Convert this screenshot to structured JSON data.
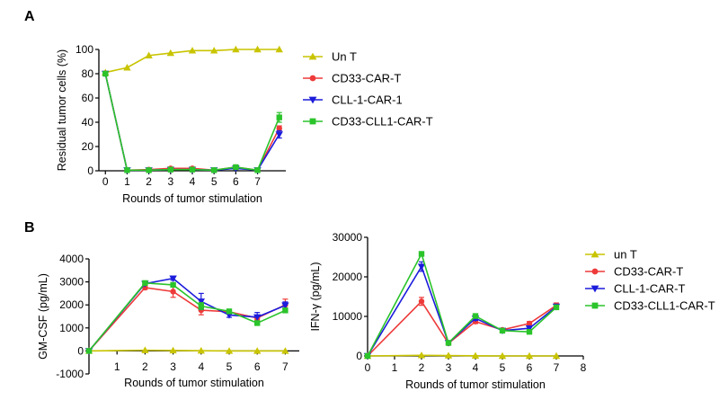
{
  "chart_data": [
    {
      "panel": "A",
      "type": "line",
      "title": "",
      "xlabel": "Rounds of tumor stimulation",
      "ylabel": "Residual tumor cells (%)",
      "xlim": [
        -0.3,
        8.3
      ],
      "ylim": [
        0,
        100
      ],
      "xticks": [
        0,
        1,
        2,
        3,
        4,
        5,
        6,
        7
      ],
      "yticks": [
        0,
        20,
        40,
        60,
        80,
        100
      ],
      "legend_position": "right",
      "series": [
        {
          "name": "Un T",
          "color": "#c8c400",
          "marker": "triangle",
          "x": [
            0,
            1,
            2,
            3,
            4,
            5,
            6,
            7,
            8
          ],
          "values": [
            81,
            85,
            95,
            97,
            99,
            99,
            100,
            100,
            100
          ],
          "errors": [
            1,
            0,
            0,
            0,
            0,
            0,
            0,
            0,
            0
          ]
        },
        {
          "name": "CD33-CAR-T",
          "color": "#ee3a3a",
          "marker": "circle",
          "x": [
            0,
            1,
            2,
            3,
            4,
            5,
            6,
            7,
            8
          ],
          "values": [
            80,
            0.5,
            1,
            2,
            2,
            0.5,
            3,
            0.5,
            35
          ],
          "errors": [
            0,
            0,
            0,
            1,
            1,
            0,
            1,
            0,
            2
          ]
        },
        {
          "name": "CLL-1-CAR-1",
          "color": "#1c1cdc",
          "marker": "triangle-down",
          "x": [
            0,
            1,
            2,
            3,
            4,
            5,
            6,
            7,
            8
          ],
          "values": [
            80,
            0.5,
            0.5,
            1,
            1,
            0.5,
            2,
            0.5,
            30
          ],
          "errors": [
            0,
            0,
            0,
            0,
            0,
            0,
            1,
            0,
            3
          ]
        },
        {
          "name": "CD33-CLL1-CAR-T",
          "color": "#2bc42b",
          "marker": "square",
          "x": [
            0,
            1,
            2,
            3,
            4,
            5,
            6,
            7,
            8
          ],
          "values": [
            80,
            0.5,
            0.5,
            1,
            1,
            0.5,
            3,
            0.5,
            44
          ],
          "errors": [
            0,
            0,
            0,
            0,
            0,
            0,
            1,
            0,
            4
          ]
        }
      ]
    },
    {
      "panel": "B",
      "type": "line",
      "title": "",
      "xlabel": "Rounds of tumor stimulation",
      "ylabel": "GM-CSF (pg/mL)",
      "xlim": [
        0,
        7.5
      ],
      "ylim": [
        -1000,
        4000
      ],
      "xticks": [
        1,
        2,
        3,
        4,
        5,
        6,
        7
      ],
      "yticks": [
        -1000,
        0,
        1000,
        2000,
        3000,
        4000
      ],
      "series": [
        {
          "name": "un T",
          "color": "#c8c400",
          "marker": "triangle",
          "x": [
            0,
            2,
            3,
            4,
            5,
            6,
            7
          ],
          "values": [
            0,
            30,
            20,
            10,
            0,
            0,
            0
          ],
          "errors": [
            0,
            0,
            0,
            0,
            0,
            0,
            0
          ]
        },
        {
          "name": "CD33-CAR-T",
          "color": "#ee3a3a",
          "marker": "circle",
          "x": [
            0,
            2,
            3,
            4,
            5,
            6,
            7
          ],
          "values": [
            0,
            2750,
            2580,
            1770,
            1700,
            1430,
            2000
          ],
          "errors": [
            0,
            80,
            250,
            200,
            100,
            80,
            250
          ]
        },
        {
          "name": "CLL-1-CAR-T",
          "color": "#1c1cdc",
          "marker": "triangle-down",
          "x": [
            0,
            2,
            3,
            4,
            5,
            6,
            7
          ],
          "values": [
            0,
            2920,
            3150,
            2150,
            1560,
            1470,
            1980
          ],
          "errors": [
            0,
            60,
            80,
            350,
            100,
            200,
            150
          ]
        },
        {
          "name": "CD33-CLL1-CAR-T",
          "color": "#2bc42b",
          "marker": "square",
          "x": [
            0,
            2,
            3,
            4,
            5,
            6,
            7
          ],
          "values": [
            0,
            2950,
            2870,
            1950,
            1720,
            1210,
            1760
          ],
          "errors": [
            0,
            60,
            80,
            150,
            80,
            60,
            100
          ]
        }
      ]
    },
    {
      "panel": "B",
      "type": "line",
      "title": "",
      "xlabel": "Rounds of tumor stimulation",
      "ylabel": "IFN-γ (pg/mL)",
      "xlim": [
        0,
        8
      ],
      "ylim": [
        0,
        30000
      ],
      "xticks": [
        0,
        1,
        2,
        3,
        4,
        5,
        6,
        7,
        8
      ],
      "yticks": [
        0,
        10000,
        20000,
        30000
      ],
      "legend_position": "right",
      "series": [
        {
          "name": "un T",
          "color": "#c8c400",
          "marker": "triangle",
          "x": [
            0,
            2,
            3,
            4,
            5,
            6,
            7
          ],
          "values": [
            0,
            150,
            100,
            50,
            0,
            0,
            0
          ],
          "errors": [
            0,
            0,
            0,
            0,
            0,
            0,
            0
          ]
        },
        {
          "name": "CD33-CAR-T",
          "color": "#ee3a3a",
          "marker": "circle",
          "x": [
            0,
            2,
            3,
            4,
            5,
            6,
            7
          ],
          "values": [
            0,
            13800,
            3200,
            8700,
            6600,
            8200,
            12800
          ],
          "errors": [
            0,
            1000,
            300,
            500,
            300,
            500,
            600
          ]
        },
        {
          "name": "CLL-1-CAR-T",
          "color": "#1c1cdc",
          "marker": "triangle-down",
          "x": [
            0,
            2,
            3,
            4,
            5,
            6,
            7
          ],
          "values": [
            0,
            22600,
            3300,
            9500,
            6400,
            7000,
            12500
          ],
          "errors": [
            0,
            1200,
            300,
            500,
            300,
            500,
            500
          ]
        },
        {
          "name": "CD33-CLL1-CAR-T",
          "color": "#2bc42b",
          "marker": "square",
          "x": [
            0,
            2,
            3,
            4,
            5,
            6,
            7
          ],
          "values": [
            0,
            25800,
            3300,
            10100,
            6400,
            6100,
            12300
          ],
          "errors": [
            0,
            500,
            300,
            500,
            300,
            300,
            500
          ]
        }
      ]
    }
  ],
  "panel_labels": {
    "a": "A",
    "b": "B"
  }
}
